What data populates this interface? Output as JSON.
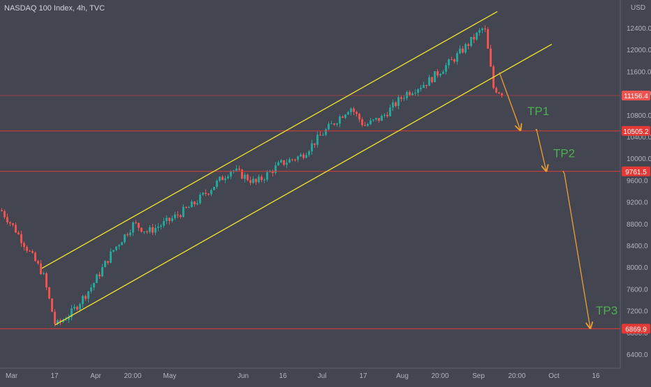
{
  "header": {
    "title": "NASDAQ 100 Index, 4h, TVC",
    "currency": "USD"
  },
  "colors": {
    "background": "#434651",
    "up": "#26a69a",
    "down": "#ef5350",
    "channel": "#f5e52b",
    "level": "#e53935",
    "arrow": "#f0a030",
    "tp": "#4caf50",
    "axis_text": "#b2b5be"
  },
  "chart_data": {
    "type": "candlestick",
    "y_axis": {
      "ticks": [
        6400,
        6800,
        7200,
        7600,
        8000,
        8400,
        8800,
        9200,
        9600,
        10000,
        10400,
        10800,
        11200,
        11600,
        12000,
        12400
      ],
      "range": [
        6200,
        12820
      ]
    },
    "x_axis": {
      "labels": [
        "Mar",
        "17",
        "Apr",
        "20:00",
        "May",
        "Jun",
        "16",
        "Jul",
        "17",
        "Aug",
        "20:00",
        "Sep",
        "20:00",
        "Oct",
        "16"
      ]
    },
    "price_key": [
      [
        "Mar",
        9050
      ],
      [
        "Mar",
        8700
      ],
      [
        "17",
        7880
      ],
      [
        "17",
        6920
      ],
      [
        "17",
        7150
      ],
      [
        "Apr",
        7650
      ],
      [
        "Apr",
        8300
      ],
      [
        "20:00",
        8800
      ],
      [
        "20:00",
        8650
      ],
      [
        "May",
        8850
      ],
      [
        "May",
        9150
      ],
      [
        "Jun",
        9800
      ],
      [
        "Jun",
        9550
      ],
      [
        "16",
        9900
      ],
      [
        "16",
        10050
      ],
      [
        "Jul",
        10450
      ],
      [
        "Jul",
        10950
      ],
      [
        "17",
        10600
      ],
      [
        "17",
        10750
      ],
      [
        "Aug",
        11200
      ],
      [
        "20:00",
        11400
      ],
      [
        "20:00",
        11850
      ],
      [
        "Sep",
        12420
      ],
      [
        "Sep",
        11300
      ],
      [
        "Sep",
        11180
      ]
    ],
    "levels": [
      {
        "value": 11156.4,
        "label": "11156.4",
        "style": "thin"
      },
      {
        "value": 10505.2,
        "label": "10505.2",
        "style": "strong"
      },
      {
        "value": 9761.5,
        "label": "9761.5",
        "style": "strong"
      },
      {
        "value": 6869.9,
        "label": "6869.9",
        "style": "strong"
      }
    ],
    "channel_lines": [
      [
        [
          "Mar",
          7980
        ],
        [
          "Sep",
          12700
        ]
      ],
      [
        [
          "17",
          6940
        ],
        [
          "20:00",
          12100
        ]
      ]
    ],
    "projection_path": [
      [
        "Sep",
        11580
      ],
      [
        "20:00",
        10520
      ],
      [
        "20:00",
        10540
      ],
      [
        "Oct",
        9770
      ],
      [
        "Oct",
        9720
      ],
      [
        "16",
        6880
      ]
    ],
    "targets": [
      {
        "label": "TP1",
        "anchor": [
          "20:00",
          10800
        ]
      },
      {
        "label": "TP2",
        "anchor": [
          "Oct",
          10020
        ]
      },
      {
        "label": "TP3",
        "anchor": [
          "16",
          7130
        ]
      }
    ]
  }
}
